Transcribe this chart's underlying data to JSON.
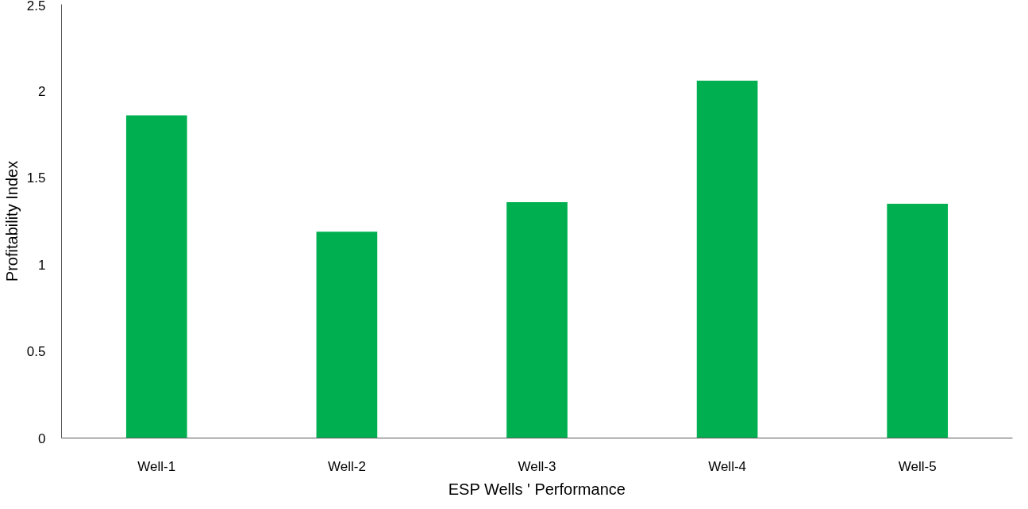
{
  "chart_data": {
    "type": "bar",
    "xlabel": "ESP Wells ' Performance",
    "ylabel": "Profitability Index",
    "categories": [
      "Well-1",
      "Well-2",
      "Well-3",
      "Well-4",
      "Well-5"
    ],
    "values": [
      1.86,
      1.19,
      1.36,
      2.06,
      1.35
    ],
    "color": "#00b050",
    "ylim": [
      0,
      2.5
    ],
    "yticks": [
      0,
      0.5,
      1,
      1.5,
      2,
      2.5
    ],
    "grid": false
  }
}
